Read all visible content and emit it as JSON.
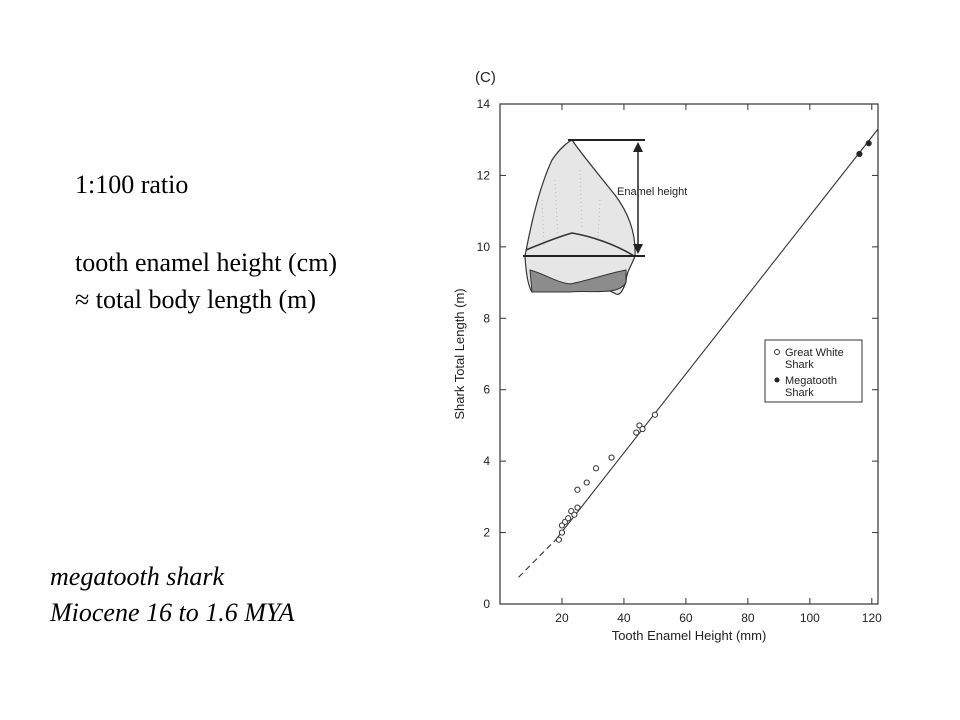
{
  "notes": {
    "ratio": "1:100 ratio",
    "formula_line1": "tooth enamel height (cm)",
    "formula_line2": "≈ total body length (m)",
    "species": "megatooth shark",
    "era": "Miocene 16 to 1.6  MYA"
  },
  "chart_data": {
    "type": "scatter",
    "panel_label": "(C)",
    "title": "",
    "xlabel": "Tooth Enamel Height (mm)",
    "ylabel": "Shark Total Length (m)",
    "xlim": [
      0,
      122
    ],
    "ylim": [
      0,
      14
    ],
    "xticks": [
      20,
      40,
      60,
      80,
      100,
      120
    ],
    "yticks": [
      0,
      2,
      4,
      6,
      8,
      10,
      12,
      14
    ],
    "grid": false,
    "legend_position": "right",
    "inset_label": "Enamel height",
    "series": [
      {
        "name": "Great White Shark",
        "marker": "open-circle",
        "points": [
          [
            19,
            1.8
          ],
          [
            20,
            2.0
          ],
          [
            20,
            2.2
          ],
          [
            21,
            2.3
          ],
          [
            22,
            2.4
          ],
          [
            23,
            2.6
          ],
          [
            24,
            2.5
          ],
          [
            25,
            2.7
          ],
          [
            25,
            3.2
          ],
          [
            28,
            3.4
          ],
          [
            31,
            3.8
          ],
          [
            36,
            4.1
          ],
          [
            44,
            4.8
          ],
          [
            45,
            5.0
          ],
          [
            46,
            4.9
          ],
          [
            50,
            5.3
          ]
        ]
      },
      {
        "name": "Megatooth Shark",
        "marker": "filled-circle",
        "points": [
          [
            116,
            12.6
          ],
          [
            119,
            12.9
          ]
        ]
      }
    ],
    "fit_line": {
      "solid_from": [
        18,
        1.8
      ],
      "solid_to": [
        122,
        13.3
      ],
      "dashed_from": [
        6,
        0.75
      ],
      "dashed_to": [
        18,
        1.8
      ]
    }
  }
}
